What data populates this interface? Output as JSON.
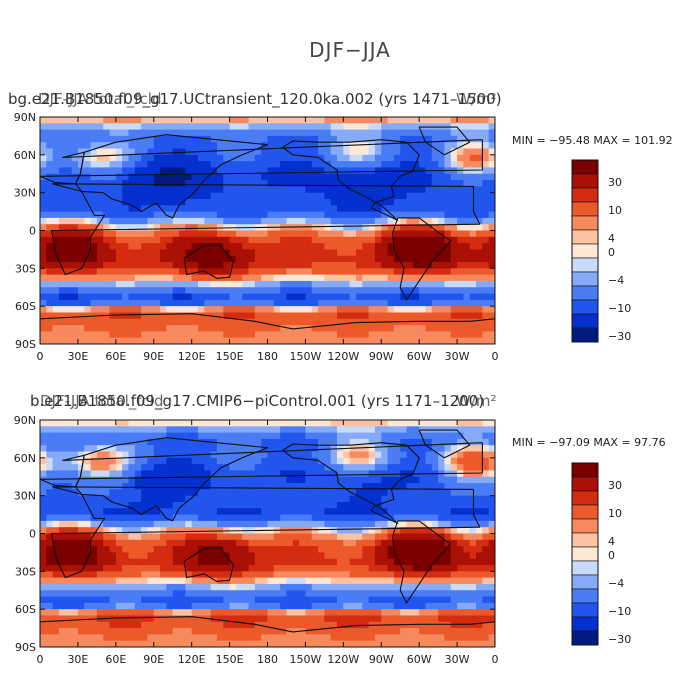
{
  "title": "DJF−JJA",
  "colors": [
    "#001a80",
    "#0530d0",
    "#2255ee",
    "#4a7cf5",
    "#86aaf8",
    "#c8dcfa",
    "#fde7d7",
    "#fcc2a2",
    "#f6895e",
    "#ec5a2c",
    "#d32c10",
    "#aa1005",
    "#7a0000"
  ],
  "contour_labels": [
    "30",
    "10",
    "4",
    "0",
    "−4",
    "−10",
    "−30"
  ],
  "map_ticks": {
    "lat": [
      "90N",
      "60N",
      "30N",
      "0",
      "30S",
      "60S",
      "90S"
    ],
    "lon": [
      "0",
      "30E",
      "60E",
      "90E",
      "120E",
      "150E",
      "180",
      "150W",
      "120W",
      "90W",
      "60W",
      "30W",
      "0"
    ]
  },
  "panels": [
    {
      "case": "bg.e21.B1850.f09_g17.UCtransient_120.0ka.002 (yrs 1471–1500)",
      "overlay": "DJF-JJA total_fcld",
      "units": "W/m²",
      "stats": "MIN = −95.48  MAX = 101.92"
    },
    {
      "case": "b.e21.B1850.f09_g17.CMIP6−piControl.001 (yrs 1171–1200)",
      "overlay": "DJF-JJA total_fcld",
      "units": "W/m²",
      "stats": "MIN = −97.09  MAX =  97.76"
    }
  ],
  "chart_data": [
    {
      "type": "heatmap",
      "title": "bg.e21.B1850.f09_g17.UCtransient_120.0ka.002 (yrs 1471–1500)",
      "x_range": [
        0,
        360
      ],
      "y_range": [
        -90,
        90
      ],
      "colorbar_levels": [
        -30,
        -10,
        -4,
        0,
        4,
        10,
        30
      ],
      "min": -95.48,
      "max": 101.92,
      "zonal_pattern": [
        {
          "lat": 90,
          "value": 8
        },
        {
          "lat": 75,
          "value": -20
        },
        {
          "lat": 60,
          "value": -22
        },
        {
          "lat": 45,
          "value": -32
        },
        {
          "lat": 30,
          "value": -28
        },
        {
          "lat": 15,
          "value": -25
        },
        {
          "lat": 5,
          "value": -3
        },
        {
          "lat": -10,
          "value": 20
        },
        {
          "lat": -25,
          "value": 24
        },
        {
          "lat": -40,
          "value": -3
        },
        {
          "lat": -55,
          "value": -30
        },
        {
          "lat": -65,
          "value": 18
        },
        {
          "lat": -75,
          "value": 14
        },
        {
          "lat": -90,
          "value": 3
        }
      ],
      "anomalies": [
        {
          "lon": 25,
          "lat": -15,
          "value": 50
        },
        {
          "lon": 302,
          "lat": -15,
          "value": 60
        },
        {
          "lon": 135,
          "lat": -20,
          "value": 45
        },
        {
          "lon": 45,
          "lat": 55,
          "value": 25
        },
        {
          "lon": 345,
          "lat": 55,
          "value": 30
        },
        {
          "lon": 255,
          "lat": 62,
          "value": 18
        },
        {
          "lon": 100,
          "lat": 40,
          "value": -25
        },
        {
          "lon": 260,
          "lat": 35,
          "value": -15
        }
      ]
    },
    {
      "type": "heatmap",
      "title": "b.e21.B1850.f09_g17.CMIP6−piControl.001 (yrs 1171–1200)",
      "x_range": [
        0,
        360
      ],
      "y_range": [
        -90,
        90
      ],
      "colorbar_levels": [
        -30,
        -10,
        -4,
        0,
        4,
        10,
        30
      ],
      "min": -97.09,
      "max": 97.76,
      "zonal_pattern": [
        {
          "lat": 90,
          "value": 5
        },
        {
          "lat": 75,
          "value": -22
        },
        {
          "lat": 60,
          "value": -20
        },
        {
          "lat": 45,
          "value": -28
        },
        {
          "lat": 30,
          "value": -22
        },
        {
          "lat": 15,
          "value": -30
        },
        {
          "lat": 5,
          "value": -4
        },
        {
          "lat": -10,
          "value": 18
        },
        {
          "lat": -25,
          "value": 22
        },
        {
          "lat": -40,
          "value": -4
        },
        {
          "lat": -55,
          "value": -28
        },
        {
          "lat": -65,
          "value": 22
        },
        {
          "lat": -75,
          "value": 15
        },
        {
          "lat": -90,
          "value": 4
        }
      ],
      "anomalies": [
        {
          "lon": 25,
          "lat": -15,
          "value": 55
        },
        {
          "lon": 302,
          "lat": -15,
          "value": 65
        },
        {
          "lon": 140,
          "lat": -18,
          "value": 40
        },
        {
          "lon": 45,
          "lat": 55,
          "value": 30
        },
        {
          "lon": 345,
          "lat": 55,
          "value": 35
        },
        {
          "lon": 255,
          "lat": 62,
          "value": 22
        },
        {
          "lon": 100,
          "lat": 40,
          "value": -20
        },
        {
          "lon": 260,
          "lat": 35,
          "value": -10
        }
      ]
    }
  ]
}
